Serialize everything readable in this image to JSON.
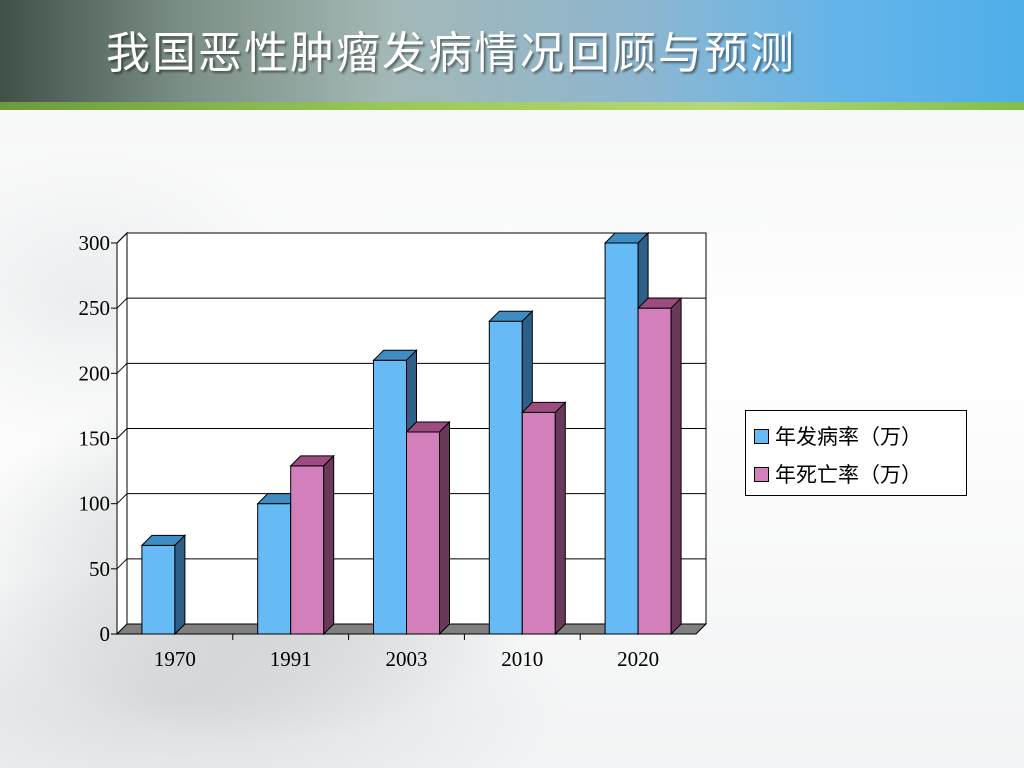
{
  "slide": {
    "title": "我国恶性肿瘤发病情况回顾与预测"
  },
  "colors": {
    "incidence_front": "#66bbf7",
    "incidence_top": "#3f8cc3",
    "incidence_side": "#2e5f86",
    "mortality_front": "#d27fbc",
    "mortality_top": "#9c4c80",
    "mortality_side": "#6a3858"
  },
  "chart_data": {
    "type": "bar",
    "categories": [
      "1970",
      "1991",
      "2003",
      "2010",
      "2020"
    ],
    "series": [
      {
        "name": "年发病率（万）",
        "values": [
          68,
          100,
          210,
          240,
          300
        ]
      },
      {
        "name": "年死亡率（万）",
        "values": [
          null,
          129,
          155,
          170,
          250
        ]
      }
    ],
    "ylim": [
      0,
      300
    ],
    "yticks": [
      "0",
      "50",
      "100",
      "150",
      "200",
      "250",
      "300"
    ],
    "grid": true,
    "legend_position": "right",
    "three_d": true
  }
}
